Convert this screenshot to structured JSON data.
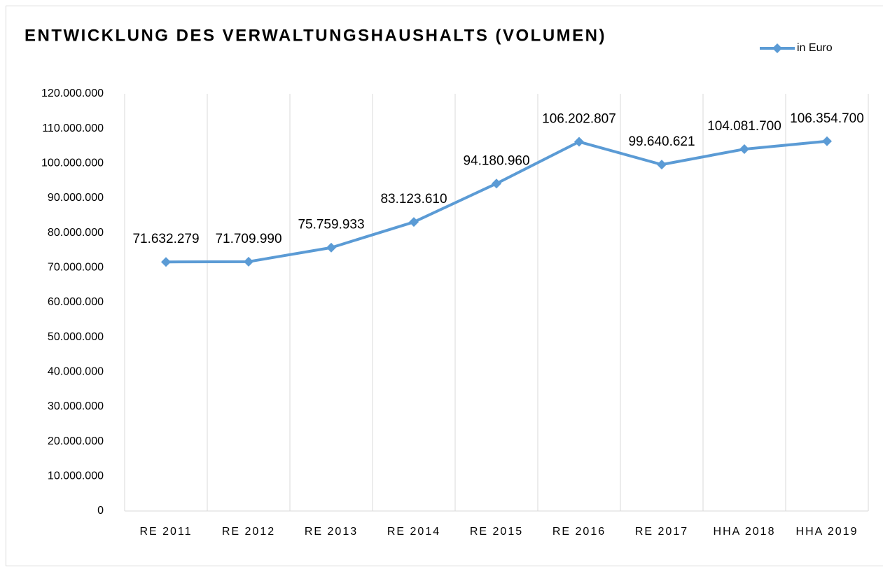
{
  "chart_data": {
    "type": "line",
    "title": "ENTWICKLUNG DES VERWALTUNGSHAUSHALTS (VOLUMEN)",
    "categories": [
      "RE 2011",
      "RE 2012",
      "RE 2013",
      "RE 2014",
      "RE 2015",
      "RE 2016",
      "RE 2017",
      "HHA 2018",
      "HHA 2019"
    ],
    "series": [
      {
        "name": "in Euro",
        "color": "#5b9bd5",
        "values": [
          71632279,
          71709990,
          75759933,
          83123610,
          94180960,
          106202807,
          99640621,
          104081700,
          106354700
        ],
        "value_labels": [
          "71.632.279",
          "71.709.990",
          "75.759.933",
          "83.123.610",
          "94.180.960",
          "106.202.807",
          "99.640.621",
          "104.081.700",
          "106.354.700"
        ]
      }
    ],
    "ylim": [
      0,
      120000000
    ],
    "yticks": [
      0,
      {
        "value": 10000000,
        "label": "10.000.000"
      },
      {
        "value": 20000000,
        "label": "20.000.000"
      },
      {
        "value": 30000000,
        "label": "30.000.000"
      },
      {
        "value": 40000000,
        "label": "40.000.000"
      },
      {
        "value": 50000000,
        "label": "50.000.000"
      },
      {
        "value": 60000000,
        "label": "60.000.000"
      },
      {
        "value": 70000000,
        "label": "70.000.000"
      },
      {
        "value": 80000000,
        "label": "80.000.000"
      },
      {
        "value": 90000000,
        "label": "90.000.000"
      },
      {
        "value": 100000000,
        "label": "100.000.000"
      },
      {
        "value": 110000000,
        "label": "110.000.000"
      },
      {
        "value": 120000000,
        "label": "120.000.000"
      }
    ],
    "grid": "vertical",
    "legend": "top-right"
  }
}
